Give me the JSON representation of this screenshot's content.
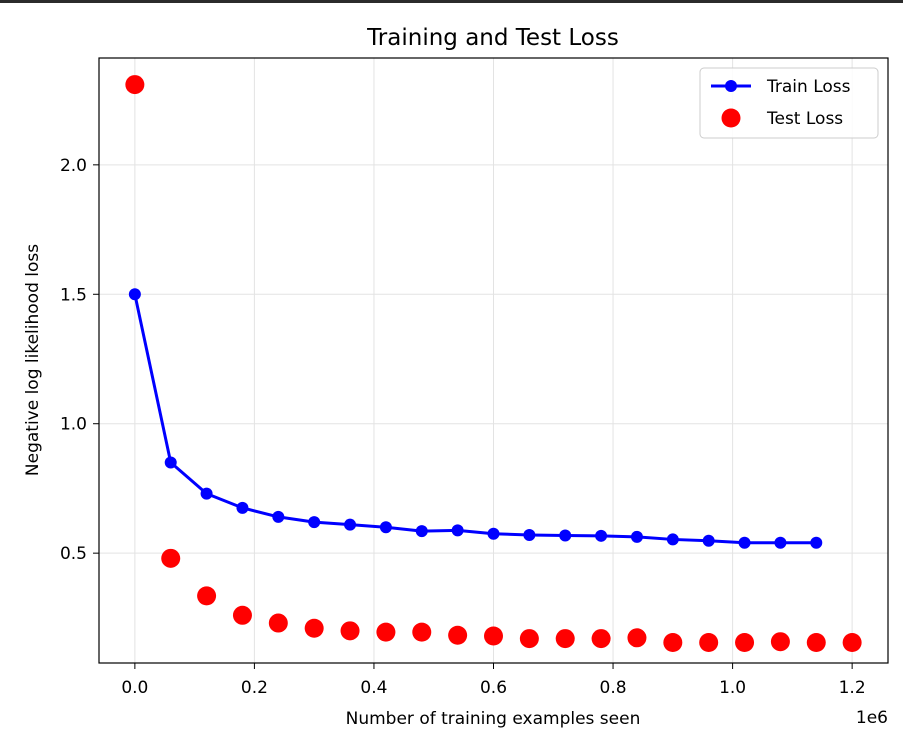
{
  "chart_data": {
    "type": "line",
    "title": "Training and Test Loss",
    "xlabel": "Number of training examples seen",
    "ylabel": "Negative log likelihood loss",
    "x_offset_label": "1e6",
    "xlim": [
      -0.06,
      1.26
    ],
    "ylim": [
      0.0757,
      2.4127
    ],
    "x_ticks": [
      0.0,
      0.2,
      0.4,
      0.6,
      0.8,
      1.0,
      1.2
    ],
    "y_ticks": [
      0.5,
      1.0,
      1.5,
      2.0
    ],
    "grid": true,
    "legend_position": "top-right",
    "series": [
      {
        "name": "Train Loss",
        "style": "line-marker",
        "color": "#0000ff",
        "x": [
          0.0,
          0.06,
          0.12,
          0.18,
          0.24,
          0.3,
          0.36,
          0.42,
          0.48,
          0.54,
          0.6,
          0.66,
          0.72,
          0.78,
          0.84,
          0.9,
          0.96,
          1.02,
          1.08,
          1.14
        ],
        "values": [
          1.5,
          0.85,
          0.73,
          0.675,
          0.64,
          0.62,
          0.61,
          0.6,
          0.585,
          0.588,
          0.575,
          0.57,
          0.568,
          0.567,
          0.563,
          0.553,
          0.548,
          0.54,
          0.54,
          0.54
        ]
      },
      {
        "name": "Test Loss",
        "style": "scatter",
        "color": "#ff0000",
        "x": [
          0.0,
          0.06,
          0.12,
          0.18,
          0.24,
          0.3,
          0.36,
          0.42,
          0.48,
          0.54,
          0.6,
          0.66,
          0.72,
          0.78,
          0.84,
          0.9,
          0.96,
          1.02,
          1.08,
          1.14,
          1.2
        ],
        "values": [
          2.31,
          0.48,
          0.335,
          0.26,
          0.23,
          0.21,
          0.2,
          0.195,
          0.195,
          0.183,
          0.18,
          0.17,
          0.17,
          0.17,
          0.173,
          0.155,
          0.155,
          0.155,
          0.158,
          0.155,
          0.155
        ]
      }
    ]
  }
}
